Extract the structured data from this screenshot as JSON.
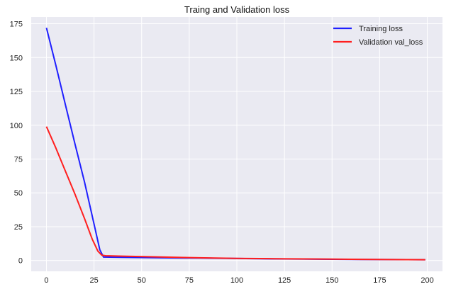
{
  "chart_data": {
    "type": "line",
    "title": "Traing and Validation loss",
    "xlabel": "",
    "ylabel": "",
    "xlim": [
      -8,
      208
    ],
    "ylim": [
      -8,
      180
    ],
    "xticks": [
      0,
      25,
      50,
      75,
      100,
      125,
      150,
      175,
      200
    ],
    "yticks": [
      0,
      25,
      50,
      75,
      100,
      125,
      150,
      175
    ],
    "grid": true,
    "legend_position": "top-right",
    "colors": {
      "background": "#eaeaf2",
      "grid": "#ffffff"
    },
    "series": [
      {
        "name": "Training loss",
        "color": "#1f1fff",
        "x": [
          0,
          5,
          10,
          15,
          20,
          25,
          28,
          30,
          40,
          60,
          80,
          100,
          120,
          150,
          180,
          199
        ],
        "y": [
          172,
          144,
          115,
          86,
          58,
          27,
          8,
          2.5,
          2.3,
          2.0,
          1.8,
          1.5,
          1.2,
          0.9,
          0.7,
          0.6
        ]
      },
      {
        "name": "Validation val_loss",
        "color": "#ff1f1f",
        "x": [
          0,
          5,
          10,
          15,
          20,
          24,
          27,
          29,
          31,
          40,
          60,
          80,
          100,
          120,
          150,
          180,
          199
        ],
        "y": [
          99,
          83,
          66,
          49,
          31,
          16,
          7,
          4,
          3.5,
          3.2,
          2.6,
          2.0,
          1.6,
          1.3,
          1.0,
          0.7,
          0.6
        ]
      }
    ]
  }
}
